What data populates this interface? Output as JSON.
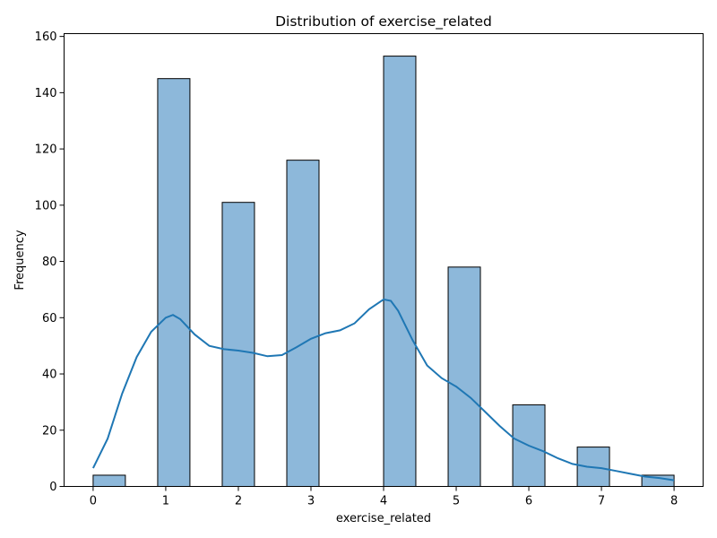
{
  "chart_data": {
    "type": "bar",
    "title": "Distribution of exercise_related",
    "xlabel": "exercise_related",
    "ylabel": "Frequency",
    "xlim": [
      -0.4,
      8.4
    ],
    "ylim": [
      0,
      161
    ],
    "x_ticks": [
      "0",
      "1",
      "2",
      "3",
      "4",
      "5",
      "6",
      "7",
      "8"
    ],
    "y_ticks": [
      "0",
      "20",
      "40",
      "60",
      "80",
      "100",
      "120",
      "140",
      "160"
    ],
    "bins": [
      {
        "x0": 0.0,
        "x1": 0.444,
        "value": 4
      },
      {
        "x0": 0.889,
        "x1": 1.333,
        "value": 145
      },
      {
        "x0": 1.778,
        "x1": 2.222,
        "value": 101
      },
      {
        "x0": 2.667,
        "x1": 3.111,
        "value": 116
      },
      {
        "x0": 4.0,
        "x1": 4.444,
        "value": 153
      },
      {
        "x0": 4.889,
        "x1": 5.333,
        "value": 78
      },
      {
        "x0": 5.778,
        "x1": 6.222,
        "value": 29
      },
      {
        "x0": 6.667,
        "x1": 7.111,
        "value": 14
      },
      {
        "x0": 7.556,
        "x1": 8.0,
        "value": 4
      }
    ],
    "kde": [
      [
        0.0,
        6.5
      ],
      [
        0.2,
        17
      ],
      [
        0.4,
        33
      ],
      [
        0.6,
        46
      ],
      [
        0.8,
        55
      ],
      [
        1.0,
        60
      ],
      [
        1.1,
        61
      ],
      [
        1.2,
        59.5
      ],
      [
        1.4,
        54
      ],
      [
        1.6,
        50
      ],
      [
        1.8,
        48.8
      ],
      [
        2.0,
        48.3
      ],
      [
        2.2,
        47.5
      ],
      [
        2.4,
        46.3
      ],
      [
        2.6,
        46.7
      ],
      [
        2.8,
        49.5
      ],
      [
        3.0,
        52.5
      ],
      [
        3.2,
        54.5
      ],
      [
        3.4,
        55.5
      ],
      [
        3.6,
        58
      ],
      [
        3.8,
        63
      ],
      [
        4.0,
        66.5
      ],
      [
        4.1,
        66
      ],
      [
        4.2,
        62.5
      ],
      [
        4.4,
        52
      ],
      [
        4.6,
        43
      ],
      [
        4.8,
        38.5
      ],
      [
        5.0,
        35.5
      ],
      [
        5.2,
        31.5
      ],
      [
        5.4,
        26.5
      ],
      [
        5.6,
        21.5
      ],
      [
        5.8,
        17
      ],
      [
        6.0,
        14.5
      ],
      [
        6.2,
        12.5
      ],
      [
        6.4,
        10
      ],
      [
        6.6,
        8
      ],
      [
        6.8,
        7
      ],
      [
        7.0,
        6.5
      ],
      [
        7.2,
        5.5
      ],
      [
        7.4,
        4.5
      ],
      [
        7.6,
        3.5
      ],
      [
        7.8,
        3
      ],
      [
        8.0,
        2.2
      ]
    ],
    "bar_fill": "#8db8da",
    "bar_edge": "#000000",
    "kde_color": "#1f77b4",
    "grid": false,
    "legend": false
  }
}
